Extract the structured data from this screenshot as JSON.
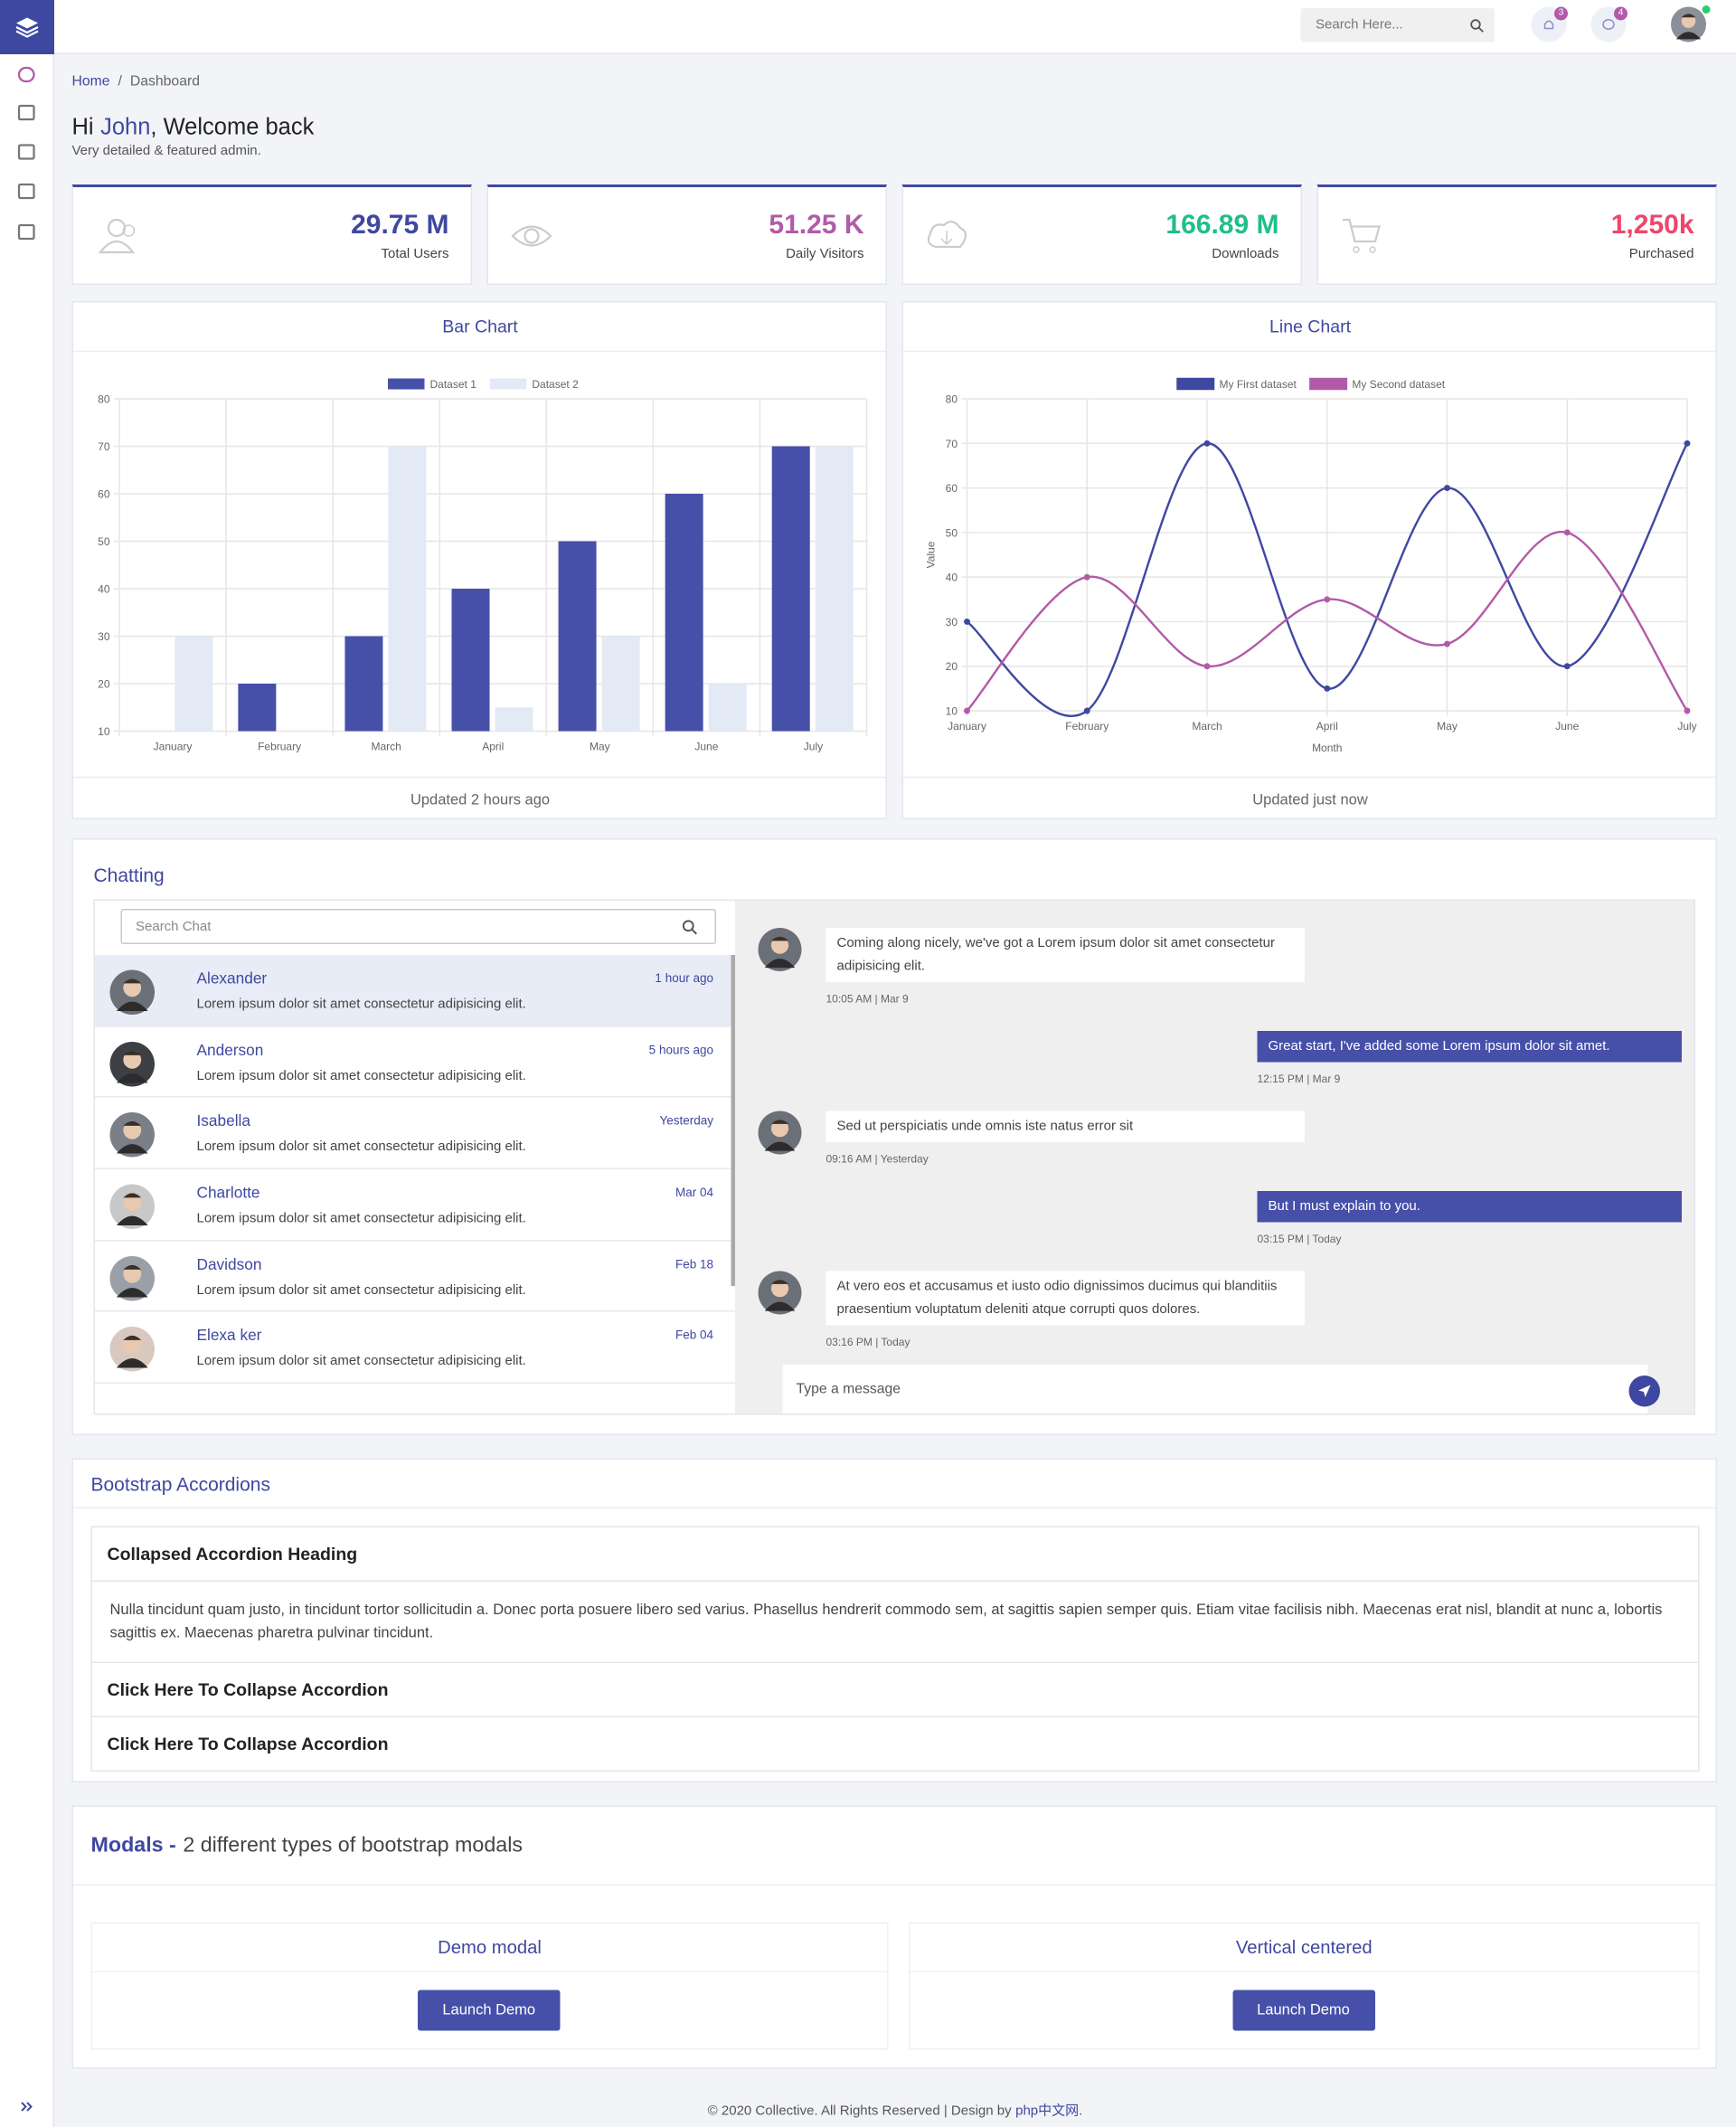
{
  "header": {
    "search_placeholder": "Search Here...",
    "notifications": 3,
    "messages": 4
  },
  "breadcrumb": [
    "Home",
    "Dashboard"
  ],
  "welcome": {
    "greeting": "Hi",
    "name": "John",
    "rest": ", Welcome back",
    "subtitle": "Very detailed & featured admin."
  },
  "stats": [
    {
      "value": "29.75 M",
      "label": "Total Users",
      "color": "#3f48a0"
    },
    {
      "value": "51.25 K",
      "label": "Daily Visitors",
      "color": "#b25aa8"
    },
    {
      "value": "166.89 M",
      "label": "Downloads",
      "color": "#1fbe8a"
    },
    {
      "value": "1,250k",
      "label": "Purchased",
      "color": "#f0446c"
    }
  ],
  "chart_data": [
    {
      "type": "bar",
      "title": "Bar Chart",
      "footer": "Updated 2 hours ago",
      "categories": [
        "January",
        "February",
        "March",
        "April",
        "May",
        "June",
        "July"
      ],
      "series": [
        {
          "name": "Dataset 1",
          "color": "#4650a8",
          "values": [
            10,
            20,
            30,
            40,
            50,
            60,
            70
          ]
        },
        {
          "name": "Dataset 2",
          "color": "#e3eaf5",
          "values": [
            30,
            10,
            70,
            15,
            30,
            20,
            70
          ]
        }
      ],
      "ylim": [
        10,
        80
      ],
      "yticks": [
        10,
        20,
        30,
        40,
        50,
        60,
        70,
        80
      ],
      "grid": true,
      "legend": "top"
    },
    {
      "type": "line",
      "title": "Line Chart",
      "footer": "Updated just now",
      "x_label": "Month",
      "y_label": "Value",
      "categories": [
        "January",
        "February",
        "March",
        "April",
        "May",
        "June",
        "July"
      ],
      "series": [
        {
          "name": "My First dataset",
          "color": "#3f48a0",
          "values": [
            30,
            10,
            70,
            15,
            60,
            20,
            70
          ]
        },
        {
          "name": "My Second dataset",
          "color": "#b25aa8",
          "values": [
            10,
            40,
            20,
            35,
            25,
            50,
            10
          ]
        }
      ],
      "ylim": [
        10,
        80
      ],
      "yticks": [
        10,
        20,
        30,
        40,
        50,
        60,
        70,
        80
      ],
      "grid": true,
      "legend": "top"
    }
  ],
  "chat": {
    "title": "Chatting",
    "search_placeholder": "Search Chat",
    "input_placeholder": "Type a message",
    "contacts": [
      {
        "name": "Alexander",
        "time": "1 hour ago",
        "message": "Lorem ipsum dolor sit amet consectetur adipisicing elit."
      },
      {
        "name": "Anderson",
        "time": "5 hours ago",
        "message": "Lorem ipsum dolor sit amet consectetur adipisicing elit."
      },
      {
        "name": "Isabella",
        "time": "Yesterday",
        "message": "Lorem ipsum dolor sit amet consectetur adipisicing elit."
      },
      {
        "name": "Charlotte",
        "time": "Mar 04",
        "message": "Lorem ipsum dolor sit amet consectetur adipisicing elit."
      },
      {
        "name": "Davidson",
        "time": "Feb 18",
        "message": "Lorem ipsum dolor sit amet consectetur adipisicing elit."
      },
      {
        "name": "Elexa ker",
        "time": "Feb 04",
        "message": "Lorem ipsum dolor sit amet consectetur adipisicing elit."
      }
    ],
    "messages": [
      {
        "side": "left",
        "text": "Coming along nicely, we've got a Lorem ipsum dolor sit amet consectetur adipisicing elit.",
        "time": "10:05 AM | Mar 9"
      },
      {
        "side": "right",
        "text": "Great start, I've added some Lorem ipsum dolor sit amet.",
        "time": "12:15 PM | Mar 9"
      },
      {
        "side": "left",
        "text": "Sed ut perspiciatis unde omnis iste natus error sit",
        "time": "09:16 AM | Yesterday"
      },
      {
        "side": "right",
        "text": "But I must explain to you.",
        "time": "03:15 PM | Today"
      },
      {
        "side": "left",
        "text": "At vero eos et accusamus et iusto odio dignissimos ducimus qui blanditiis praesentium voluptatum deleniti atque corrupti quos dolores.",
        "time": "03:16 PM | Today"
      }
    ]
  },
  "accordion": {
    "title": "Bootstrap Accordions",
    "items": [
      {
        "heading": "Collapsed Accordion Heading",
        "body": "Nulla tincidunt quam justo, in tincidunt tortor sollicitudin a. Donec porta posuere libero sed varius. Phasellus hendrerit commodo sem, at sagittis sapien semper quis. Etiam vitae facilisis nibh. Maecenas erat nisl, blandit at nunc a, lobortis sagittis ex. Maecenas pharetra pulvinar tincidunt."
      },
      {
        "heading": "Click Here To Collapse Accordion"
      },
      {
        "heading": "Click Here To Collapse Accordion"
      }
    ]
  },
  "modals": {
    "title": "Modals -",
    "subtitle": "2 different types of bootstrap modals",
    "cards": [
      {
        "title": "Demo modal",
        "button": "Launch Demo"
      },
      {
        "title": "Vertical centered",
        "button": "Launch Demo"
      }
    ]
  },
  "footer": {
    "text": "© 2020 Collective. All Rights Reserved | Design by",
    "link": "php中文网."
  }
}
